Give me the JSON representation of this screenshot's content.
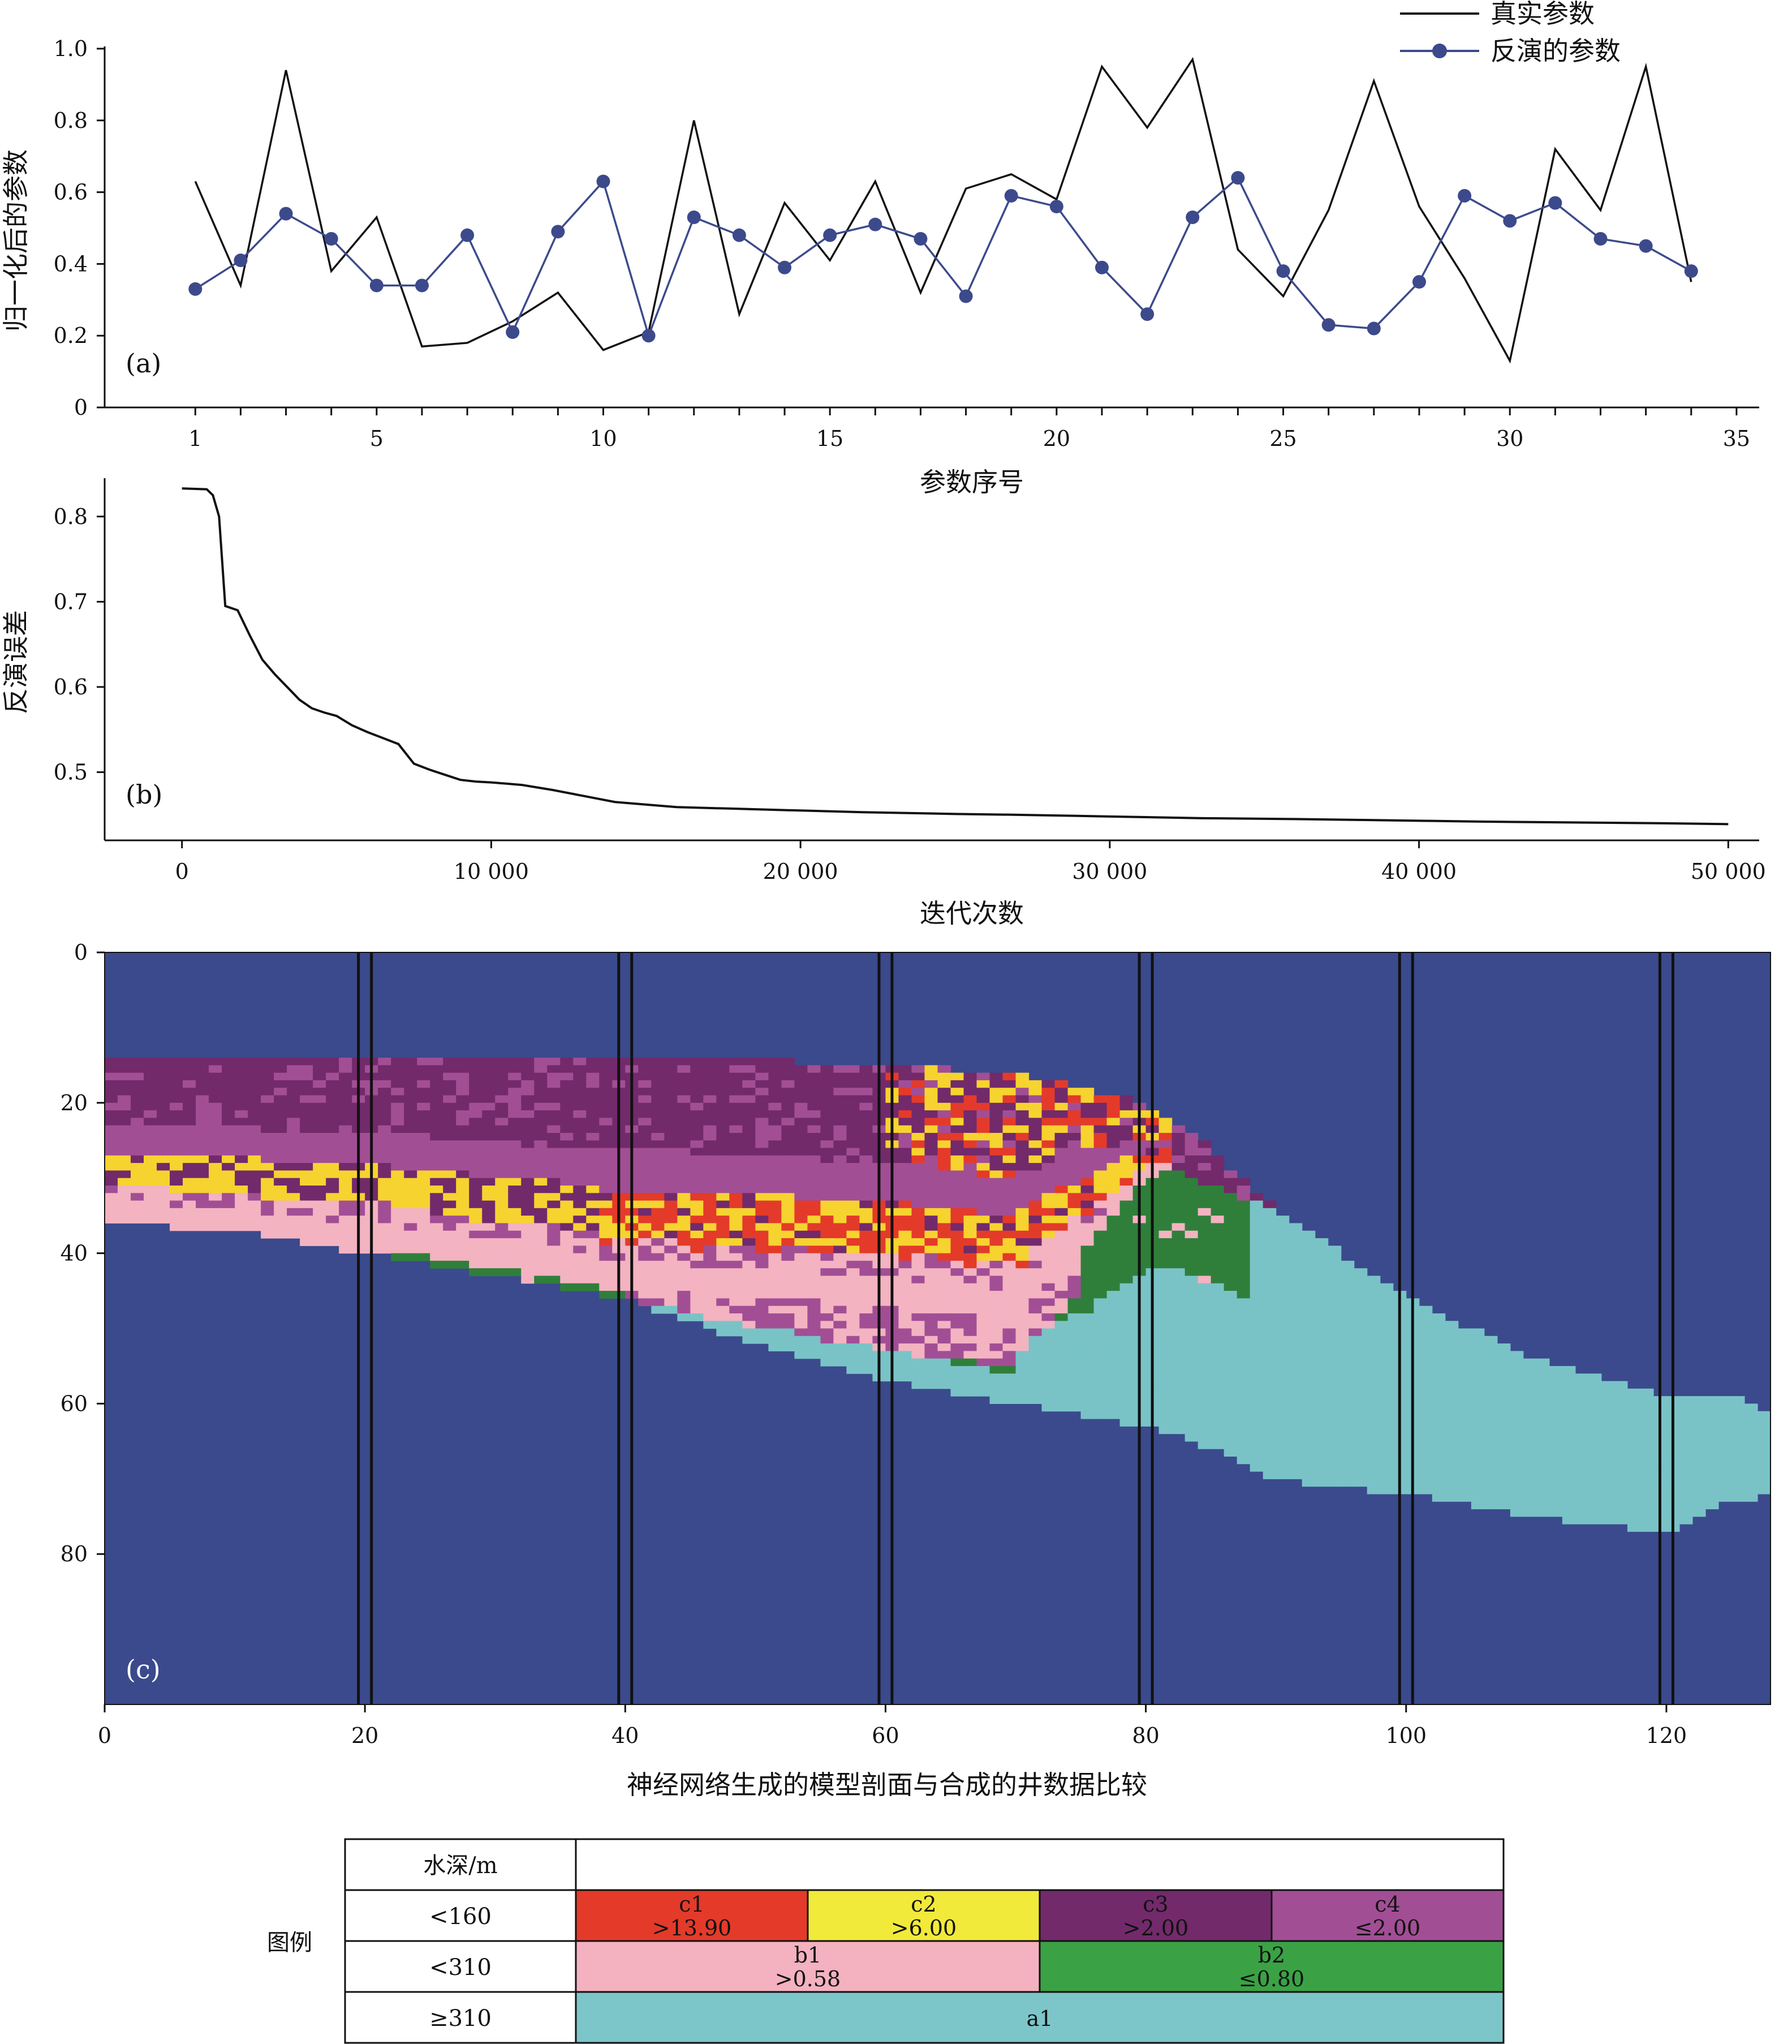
{
  "chart_data": [
    {
      "panel": "(a)",
      "type": "line",
      "xlabel": "参数序号",
      "ylabel": "归一化后的参数",
      "xlim": [
        -1,
        35.5
      ],
      "ylim": [
        0,
        1.0
      ],
      "xticks": [
        1,
        5,
        10,
        15,
        20,
        25,
        30,
        35
      ],
      "yticks": [
        0,
        0.2,
        0.4,
        0.6,
        0.8,
        1.0
      ],
      "ytick_labels": [
        "0",
        "0.2",
        "0.4",
        "0.6",
        "0.8",
        "1.0"
      ],
      "legend_position": "top-right",
      "x": [
        1,
        2,
        3,
        4,
        5,
        6,
        7,
        8,
        9,
        10,
        11,
        12,
        13,
        14,
        15,
        16,
        17,
        18,
        19,
        20,
        21,
        22,
        23,
        24,
        25,
        26,
        27,
        28,
        29,
        30,
        31,
        32,
        33,
        34
      ],
      "series": [
        {
          "name": "真实参数",
          "color": "#111111",
          "marker": "none",
          "values": [
            0.63,
            0.34,
            0.94,
            0.38,
            0.53,
            0.17,
            0.18,
            0.24,
            0.32,
            0.16,
            0.21,
            0.8,
            0.26,
            0.57,
            0.41,
            0.63,
            0.32,
            0.61,
            0.65,
            0.58,
            0.95,
            0.78,
            0.97,
            0.44,
            0.31,
            0.55,
            0.91,
            0.56,
            0.36,
            0.13,
            0.72,
            0.55,
            0.95,
            0.35
          ]
        },
        {
          "name": "反演的参数",
          "color": "#3c4a8c",
          "marker": "circle",
          "values": [
            0.33,
            0.41,
            0.54,
            0.47,
            0.34,
            0.34,
            0.48,
            0.21,
            0.49,
            0.63,
            0.2,
            0.53,
            0.48,
            0.39,
            0.48,
            0.51,
            0.47,
            0.31,
            0.59,
            0.56,
            0.39,
            0.26,
            0.53,
            0.64,
            0.38,
            0.23,
            0.22,
            0.35,
            0.59,
            0.52,
            0.57,
            0.47,
            0.45,
            0.38
          ]
        }
      ]
    },
    {
      "panel": "(b)",
      "type": "line",
      "xlabel": "迭代次数",
      "ylabel": "反演误差",
      "xlim": [
        -2500,
        51000
      ],
      "ylim": [
        0.42,
        0.845
      ],
      "xticks": [
        0,
        10000,
        20000,
        30000,
        40000,
        50000
      ],
      "xtick_labels": [
        "0",
        "10 000",
        "20 000",
        "30 000",
        "40 000",
        "50 000"
      ],
      "yticks": [
        0.5,
        0.6,
        0.7,
        0.8
      ],
      "series": [
        {
          "name": "",
          "color": "#111111",
          "x": [
            0,
            800,
            1000,
            1200,
            1400,
            1800,
            2200,
            2600,
            3000,
            3400,
            3800,
            4200,
            4600,
            5000,
            5500,
            6000,
            6500,
            7000,
            7500,
            8000,
            8500,
            9000,
            9500,
            10000,
            11000,
            12000,
            13000,
            14000,
            15000,
            16000,
            18000,
            20000,
            22000,
            25000,
            27000,
            30000,
            33000,
            36000,
            38000,
            40000,
            42000,
            45000,
            48000,
            50000
          ],
          "y": [
            0.833,
            0.832,
            0.825,
            0.8,
            0.695,
            0.69,
            0.66,
            0.632,
            0.615,
            0.6,
            0.585,
            0.575,
            0.57,
            0.566,
            0.555,
            0.547,
            0.54,
            0.533,
            0.51,
            0.503,
            0.497,
            0.491,
            0.489,
            0.488,
            0.485,
            0.479,
            0.472,
            0.465,
            0.462,
            0.459,
            0.457,
            0.455,
            0.453,
            0.451,
            0.45,
            0.448,
            0.446,
            0.445,
            0.444,
            0.443,
            0.442,
            0.441,
            0.44,
            0.439
          ]
        }
      ]
    },
    {
      "panel": "(c)",
      "type": "heatmap",
      "xlabel": "神经网络生成的模型剖面与合成的井数据比较",
      "xlim": [
        0,
        128
      ],
      "ylim": [
        100,
        0
      ],
      "xticks": [
        0,
        20,
        40,
        60,
        80,
        100,
        120
      ],
      "yticks": [
        0,
        20,
        40,
        60,
        80
      ],
      "well_pairs_x": [
        20,
        40,
        60,
        80,
        100,
        120
      ],
      "background_color": "#3b4a8c",
      "class_colors": {
        "c1": "#e43a2a",
        "c2": "#f6d32f",
        "c3": "#722a6b",
        "c4": "#a24e95",
        "b1": "#f3b3c1",
        "b2": "#2f7f3a",
        "a1": "#79c3c7"
      },
      "region_bounds_depth": {
        "x": [
          0,
          10,
          20,
          30,
          40,
          50,
          60,
          70,
          80,
          82,
          85,
          88,
          90,
          95,
          100,
          110,
          120,
          125,
          128
        ],
        "top": [
          14,
          14,
          14,
          14,
          14,
          14.3,
          15,
          16,
          20,
          22,
          26,
          31,
          34,
          40,
          46,
          54,
          59,
          59,
          61
        ],
        "low_water_bottom": [
          36,
          37,
          39,
          42,
          45,
          46,
          47,
          49,
          30,
          29,
          31,
          33,
          34,
          40,
          46,
          54,
          59,
          59,
          61
        ],
        "mid_water_bottom": [
          36,
          37,
          40,
          43,
          46,
          52,
          57,
          60,
          63,
          64,
          66,
          68,
          70,
          71,
          72,
          75,
          77,
          73,
          72
        ],
        "deep_water_bottom": [
          36,
          37,
          40,
          43,
          46,
          52,
          57,
          60,
          63,
          64,
          66,
          68,
          70,
          71,
          72,
          75,
          77,
          73,
          72
        ]
      }
    }
  ],
  "legend_table": {
    "header_label": "水深/m",
    "row_label": "图例",
    "rows": [
      {
        "range": "<160",
        "cells": [
          {
            "name": "c1",
            "value": ">13.90",
            "color": "#e43a2a"
          },
          {
            "name": "c2",
            "value": ">6.00",
            "color": "#f1ea3a"
          },
          {
            "name": "c3",
            "value": ">2.00",
            "color": "#722a6b"
          },
          {
            "name": "c4",
            "value": "≤2.00",
            "color": "#a24e95"
          }
        ]
      },
      {
        "range": "<310",
        "cells": [
          {
            "name": "b1",
            "value": ">0.58",
            "color": "#f4b1c0"
          },
          {
            "name": "b2",
            "value": "≤0.80",
            "color": "#3aa245"
          }
        ]
      },
      {
        "range": "≥310",
        "cells": [
          {
            "name": "a1",
            "value": "",
            "color": "#7cc5c9"
          }
        ]
      }
    ]
  }
}
